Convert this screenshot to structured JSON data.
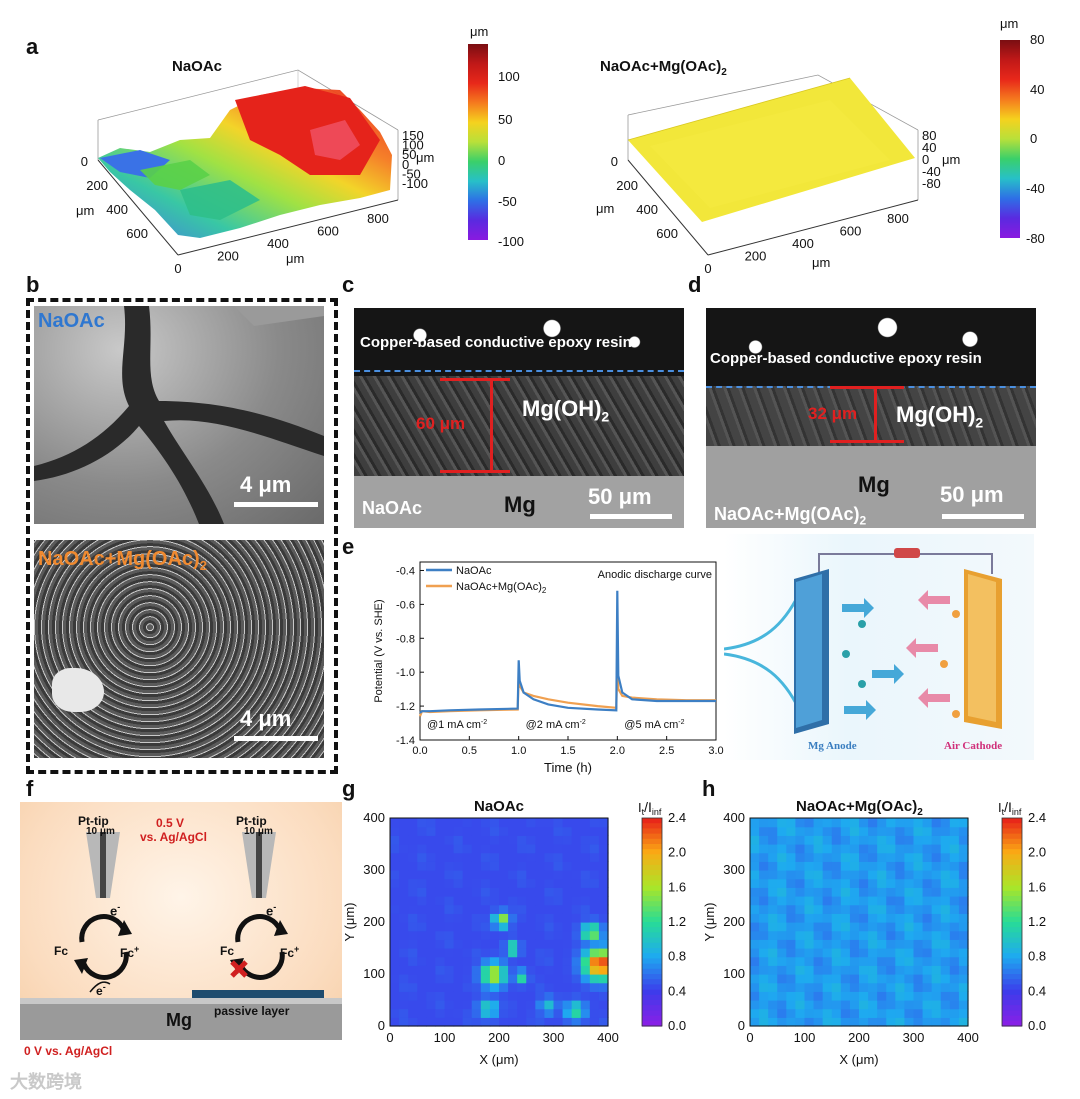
{
  "panels": {
    "a": {
      "label": "a",
      "left": {
        "title": "NaOAc",
        "x_ticks": [
          "0",
          "200",
          "400",
          "600",
          "800"
        ],
        "x_unit": "μm",
        "y_ticks": [
          "0",
          "200",
          "400",
          "600"
        ],
        "y_unit": "μm",
        "z_ticks": [
          "150",
          "100",
          "50",
          "0",
          "-50",
          "-100"
        ],
        "z_unit": "μm",
        "colorbar_unit": "μm",
        "colorbar_ticks": [
          "100",
          "50",
          "0",
          "-50",
          "-100"
        ]
      },
      "right": {
        "title": "NaOAc+Mg(OAc)",
        "title_sub": "2",
        "x_ticks": [
          "0",
          "200",
          "400",
          "600",
          "800"
        ],
        "x_unit": "μm",
        "y_ticks": [
          "0",
          "200",
          "400",
          "600"
        ],
        "y_unit": "μm",
        "z_ticks": [
          "80",
          "40",
          "0",
          "-40",
          "-80"
        ],
        "z_unit": "μm",
        "colorbar_unit": "μm",
        "colorbar_ticks": [
          "80",
          "40",
          "0",
          "-40",
          "-80"
        ]
      }
    },
    "b": {
      "label": "b",
      "top_tag": "NaOAc",
      "top_scale": "4 μm",
      "bottom_tag": "NaOAc+Mg(OAc)",
      "bottom_tag_sub": "2",
      "bottom_scale": "4 μm"
    },
    "c": {
      "label": "c",
      "resin": "Copper-based conductive epoxy resin",
      "layer": "Mg(OH)",
      "layer_sub": "2",
      "thickness": "60 μm",
      "substrate": "Mg",
      "tag": "NaOAc",
      "scale": "50 μm"
    },
    "d": {
      "label": "d",
      "resin": "Copper-based conductive epoxy resin",
      "layer": "Mg(OH)",
      "layer_sub": "2",
      "thickness": "32 μm",
      "substrate": "Mg",
      "tag": "NaOAc+Mg(OAc)",
      "tag_sub": "2",
      "scale": "50 μm"
    },
    "e": {
      "label": "e",
      "anode_label": "Mg Anode",
      "cathode_label": "Air Cathode"
    },
    "f": {
      "label": "f",
      "tip_left": "Pt-tip",
      "tip_left_size": "10 μm",
      "tip_right": "Pt-tip",
      "tip_right_size": "10 μm",
      "bias": "0.5 V",
      "bias_ref": "vs. Ag/AgCl",
      "fc": "Fc",
      "fc_plus": "Fc",
      "electron": "e",
      "passive": "passive layer",
      "substrate": "Mg",
      "ground": "0 V vs. Ag/AgCl"
    },
    "g": {
      "label": "g"
    },
    "h": {
      "label": "h"
    }
  },
  "watermark": "大数跨境",
  "chart_data": [
    {
      "id": "e",
      "type": "line",
      "title": "",
      "annotation": "Anodic discharge curve",
      "xlabel": "Time (h)",
      "ylabel": "Potential (V vs. SHE)",
      "xlim": [
        0,
        3.0
      ],
      "ylim": [
        -1.4,
        -0.35
      ],
      "x_ticks": [
        "0.0",
        "0.5",
        "1.0",
        "1.5",
        "2.0",
        "2.5",
        "3.0"
      ],
      "y_ticks": [
        "-0.4",
        "-0.6",
        "-0.8",
        "-1.0",
        "-1.2",
        "-1.4"
      ],
      "current_labels": [
        "@1 mA cm",
        "@2 mA cm",
        "@5 mA cm"
      ],
      "current_sup": "-2",
      "series": [
        {
          "name": "NaOAc",
          "color": "#3d7fc4",
          "x": [
            0,
            0.02,
            0.1,
            0.3,
            0.6,
            0.99,
            1.0,
            1.01,
            1.05,
            1.15,
            1.3,
            1.5,
            1.8,
            1.99,
            2.0,
            2.01,
            2.05,
            2.15,
            2.4,
            2.7,
            3.0
          ],
          "y": [
            -1.24,
            -1.23,
            -1.23,
            -1.225,
            -1.22,
            -1.215,
            -0.93,
            -1.05,
            -1.12,
            -1.16,
            -1.19,
            -1.21,
            -1.22,
            -1.225,
            -0.52,
            -1.02,
            -1.12,
            -1.16,
            -1.17,
            -1.17,
            -1.17
          ]
        },
        {
          "name": "NaOAc+Mg(OAc)",
          "name_sub": "2",
          "color": "#f0a050",
          "x": [
            0,
            0.02,
            0.1,
            0.3,
            0.6,
            0.99,
            1.0,
            1.01,
            1.05,
            1.15,
            1.3,
            1.5,
            1.8,
            1.99,
            2.0,
            2.01,
            2.05,
            2.15,
            2.4,
            2.7,
            3.0
          ],
          "y": [
            -1.26,
            -1.23,
            -1.235,
            -1.23,
            -1.225,
            -1.22,
            -1.02,
            -1.08,
            -1.12,
            -1.14,
            -1.16,
            -1.18,
            -1.2,
            -1.21,
            -0.97,
            -1.1,
            -1.14,
            -1.15,
            -1.16,
            -1.165,
            -1.165
          ]
        }
      ]
    },
    {
      "id": "g",
      "type": "heatmap",
      "title": "NaOAc",
      "xlabel": "X (μm)",
      "ylabel": "Y (μm)",
      "xlim": [
        0,
        400
      ],
      "ylim": [
        0,
        400
      ],
      "x_ticks": [
        "0",
        "100",
        "200",
        "300",
        "400"
      ],
      "y_ticks": [
        "0",
        "100",
        "200",
        "300",
        "400"
      ],
      "colorbar_label": "I",
      "colorbar_sub_t": "t",
      "colorbar_sub_inf": "inf",
      "colorbar_ticks": [
        "2.4",
        "2.0",
        "1.6",
        "1.2",
        "0.8",
        "0.4",
        "0.0"
      ],
      "background_value": 0.45,
      "hotspots": [
        {
          "x": 205,
          "y": 205,
          "r": 14,
          "v": 1.6
        },
        {
          "x": 225,
          "y": 150,
          "r": 12,
          "v": 1.4
        },
        {
          "x": 190,
          "y": 100,
          "r": 22,
          "v": 1.7
        },
        {
          "x": 240,
          "y": 95,
          "r": 12,
          "v": 1.2
        },
        {
          "x": 385,
          "y": 120,
          "r": 28,
          "v": 2.4
        },
        {
          "x": 370,
          "y": 180,
          "r": 18,
          "v": 1.5
        },
        {
          "x": 180,
          "y": 35,
          "r": 18,
          "v": 1.1
        },
        {
          "x": 290,
          "y": 40,
          "r": 16,
          "v": 0.95
        },
        {
          "x": 340,
          "y": 30,
          "r": 18,
          "v": 1.2
        }
      ]
    },
    {
      "id": "h",
      "type": "heatmap",
      "title": "NaOAc+Mg(OAc)",
      "title_sub": "2",
      "xlabel": "X (μm)",
      "ylabel": "Y (μm)",
      "xlim": [
        0,
        400
      ],
      "ylim": [
        0,
        400
      ],
      "x_ticks": [
        "0",
        "100",
        "200",
        "300",
        "400"
      ],
      "y_ticks": [
        "0",
        "100",
        "200",
        "300",
        "400"
      ],
      "colorbar_label": "I",
      "colorbar_sub_t": "t",
      "colorbar_sub_inf": "inf",
      "colorbar_ticks": [
        "2.4",
        "2.0",
        "1.6",
        "1.2",
        "0.8",
        "0.4",
        "0.0"
      ],
      "background_value": 0.75
    }
  ]
}
